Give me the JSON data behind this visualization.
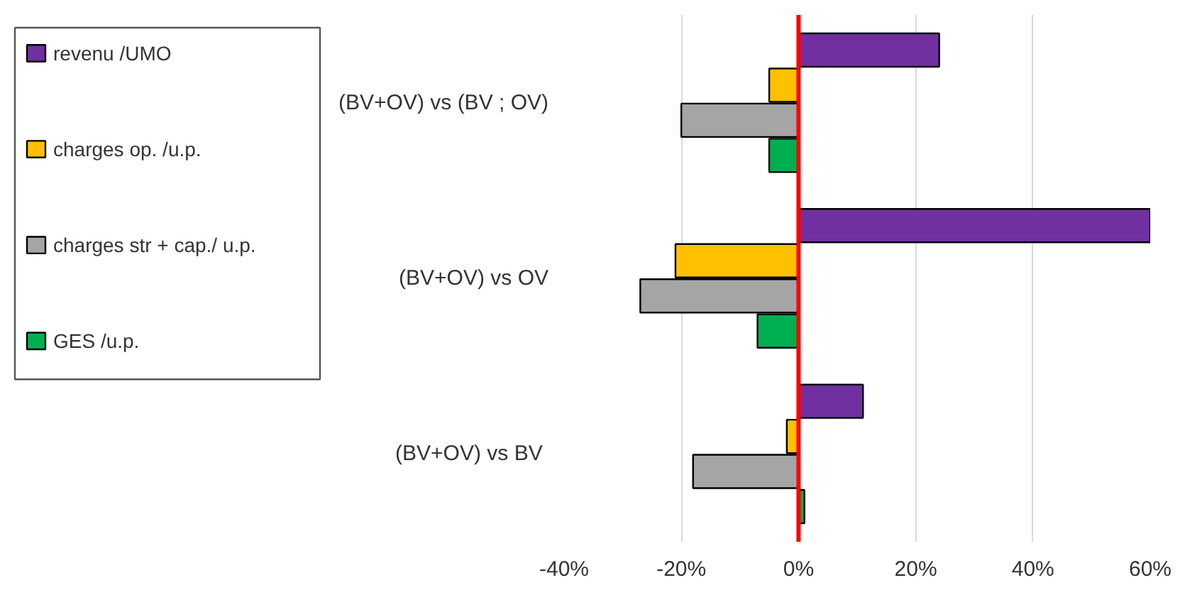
{
  "chart_data": {
    "type": "bar",
    "orientation": "horizontal",
    "categories": [
      "(BV+OV) vs (BV ; OV)",
      "(BV+OV) vs OV",
      "(BV+OV) vs  BV"
    ],
    "series": [
      {
        "name": "revenu /UMO",
        "color": "#7030a0",
        "values": [
          24,
          60,
          11
        ]
      },
      {
        "name": "charges op. /u.p.",
        "color": "#ffc000",
        "values": [
          -5,
          -21,
          -2
        ]
      },
      {
        "name": "charges str + cap./ u.p.",
        "color": "#a5a5a5",
        "values": [
          -20,
          -27,
          -18
        ]
      },
      {
        "name": "GES /u.p.",
        "color": "#00b050",
        "values": [
          -5,
          -7,
          1
        ]
      }
    ],
    "xlim": [
      -40,
      60
    ],
    "xticks": [
      {
        "value": -40,
        "label": "-40%"
      },
      {
        "value": -20,
        "label": "-20%"
      },
      {
        "value": 0,
        "label": "0%"
      },
      {
        "value": 20,
        "label": "20%"
      },
      {
        "value": 40,
        "label": "40%"
      },
      {
        "value": 60,
        "label": "60%"
      }
    ],
    "ref_lines": [
      {
        "axis": "x",
        "value": 0,
        "color": "#ff0000"
      }
    ],
    "grid": "x",
    "legend": "left"
  }
}
